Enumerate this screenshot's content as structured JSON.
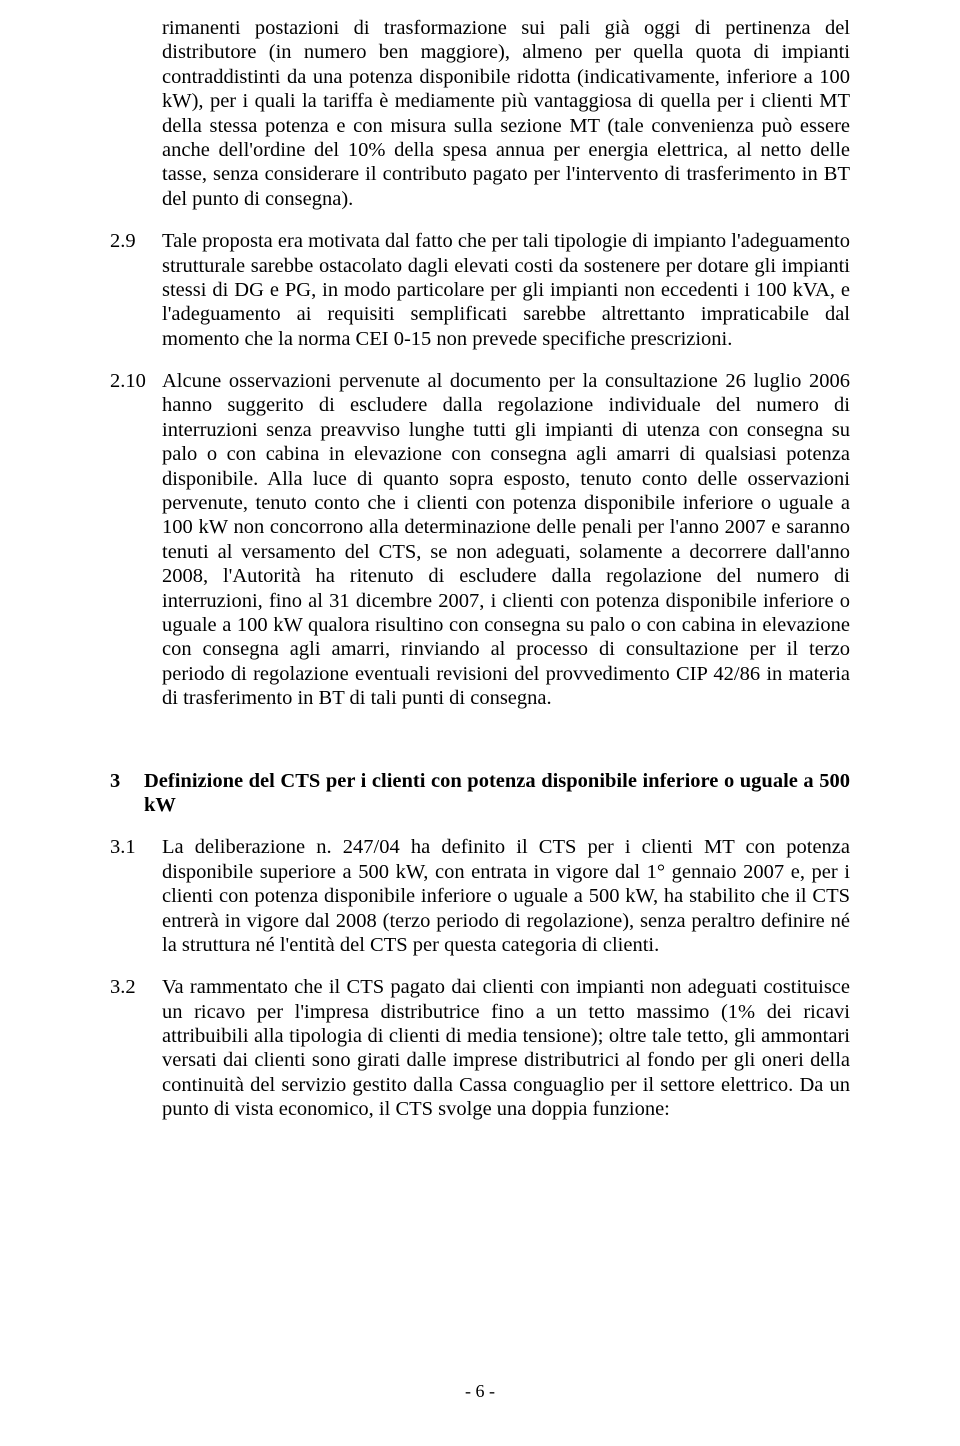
{
  "para_cont": "rimanenti postazioni di trasformazione sui pali già oggi di pertinenza del distributore (in numero ben maggiore), almeno per quella quota di impianti contraddistinti da una potenza disponibile ridotta (indicativamente, inferiore a 100 kW), per i quali la tariffa è mediamente più vantaggiosa di quella per i clienti MT della stessa potenza e con misura sulla sezione MT (tale convenienza può essere anche dell'ordine del 10% della spesa annua per energia elettrica, al netto delle tasse, senza considerare il contributo pagato per l'intervento di trasferimento in BT del punto di consegna).",
  "p29": {
    "num": "2.9",
    "text": "Tale proposta era motivata dal fatto che per tali tipologie di impianto l'adeguamento strutturale sarebbe ostacolato dagli elevati costi da sostenere per dotare gli impianti stessi di DG e PG, in modo particolare per gli impianti non eccedenti i 100 kVA, e l'adeguamento ai requisiti semplificati sarebbe altrettanto impraticabile dal momento che la norma CEI 0-15 non prevede specifiche prescrizioni."
  },
  "p210": {
    "num": "2.10",
    "text": "Alcune osservazioni pervenute al documento per la consultazione 26 luglio 2006 hanno suggerito di escludere dalla regolazione individuale del numero di interruzioni senza preavviso lunghe tutti gli impianti di utenza con consegna su palo o con cabina in elevazione con consegna agli amarri di qualsiasi potenza disponibile. Alla luce di quanto sopra esposto, tenuto conto delle osservazioni pervenute, tenuto conto che i clienti con potenza disponibile inferiore o uguale a 100 kW non concorrono alla determinazione delle penali per l'anno 2007 e saranno tenuti al versamento del CTS, se non adeguati, solamente a decorrere dall'anno 2008, l'Autorità ha ritenuto di escludere dalla regolazione del numero di interruzioni, fino al 31 dicembre 2007, i clienti con potenza disponibile inferiore o uguale a 100 kW qualora risultino con consegna su palo o con cabina in elevazione con consegna agli amarri, rinviando al processo di consultazione per il terzo periodo di regolazione eventuali revisioni del provvedimento CIP 42/86 in materia di trasferimento in BT di tali punti di consegna."
  },
  "section3": {
    "num": "3",
    "title": "Definizione del CTS per i clienti con potenza disponibile inferiore o uguale a 500 kW"
  },
  "p31": {
    "num": "3.1",
    "text": "La deliberazione n. 247/04 ha definito il CTS per i clienti MT con potenza disponibile superiore a 500 kW, con entrata in vigore dal 1° gennaio 2007 e, per i clienti con potenza disponibile inferiore o uguale a 500 kW, ha stabilito che il CTS entrerà in vigore dal 2008 (terzo periodo di regolazione), senza peraltro definire né la struttura né l'entità del CTS per questa categoria di clienti."
  },
  "p32": {
    "num": "3.2",
    "text": "Va rammentato che il CTS pagato dai clienti con impianti non adeguati costituisce un ricavo per l'impresa distributrice fino a un tetto massimo (1% dei ricavi attribuibili alla tipologia di clienti di media tensione); oltre tale tetto, gli ammontari versati dai clienti sono girati dalle imprese distributrici al fondo per gli oneri della continuità del servizio gestito dalla Cassa conguaglio per il settore elettrico. Da un punto di vista economico, il CTS svolge una doppia funzione:"
  },
  "page_number": "- 6 -"
}
